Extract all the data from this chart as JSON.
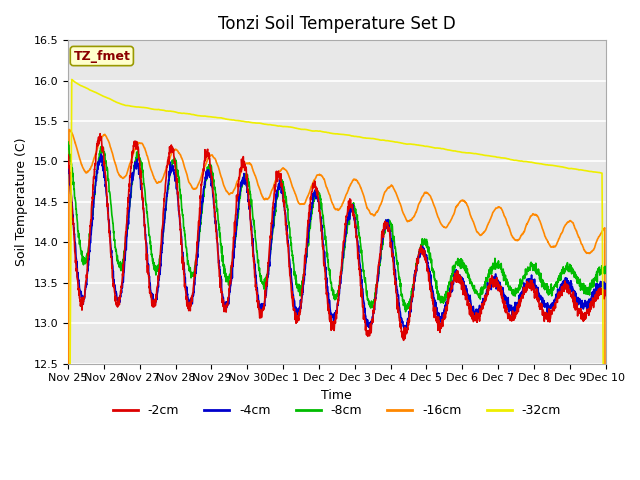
{
  "title": "Tonzi Soil Temperature Set D",
  "xlabel": "Time",
  "ylabel": "Soil Temperature (C)",
  "ylim": [
    12.5,
    16.5
  ],
  "annotation_text": "TZ_fmet",
  "legend_labels": [
    "-2cm",
    "-4cm",
    "-8cm",
    "-16cm",
    "-32cm"
  ],
  "legend_colors": [
    "#dd0000",
    "#0000cc",
    "#00bb00",
    "#ff8800",
    "#eeee00"
  ],
  "xtick_labels": [
    "Nov 25",
    "Nov 26",
    "Nov 27",
    "Nov 28",
    "Nov 29",
    "Nov 30",
    "Dec 1",
    "Dec 2",
    "Dec 3",
    "Dec 4",
    "Dec 5",
    "Dec 6",
    "Dec 7",
    "Dec 8",
    "Dec 9",
    "Dec 10"
  ],
  "background_color": "#e8e8e8",
  "title_fontsize": 12,
  "axis_fontsize": 9,
  "tick_fontsize": 8
}
